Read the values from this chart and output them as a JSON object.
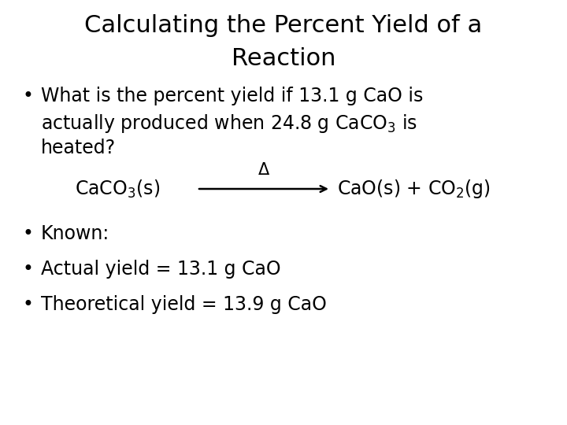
{
  "title_line1": "Calculating the Percent Yield of a",
  "title_line2": "Reaction",
  "bg_color": "#ffffff",
  "text_color": "#000000",
  "title_fontsize": 22,
  "body_fontsize": 17,
  "equation_fontsize": 17,
  "font_family": "DejaVu Sans",
  "bullet1_l1": "What is the percent yield if 13.1 g CaO is",
  "bullet1_l2a": "actually produced when 24.8 g CaCO",
  "bullet1_l2b": "3",
  "bullet1_l2c": " is",
  "bullet1_l3": "heated?",
  "eq_left": "CaCO",
  "eq_left_sub": "3",
  "eq_left_rest": "(s)",
  "eq_delta": "Δ",
  "eq_right": "CaO(s) + CO",
  "eq_right_sub": "2",
  "eq_right_rest": "(g)",
  "bullet2": "Known:",
  "bullet3": "Actual yield = 13.1 g CaO",
  "bullet4": "Theoretical yield = 13.9 g CaO"
}
